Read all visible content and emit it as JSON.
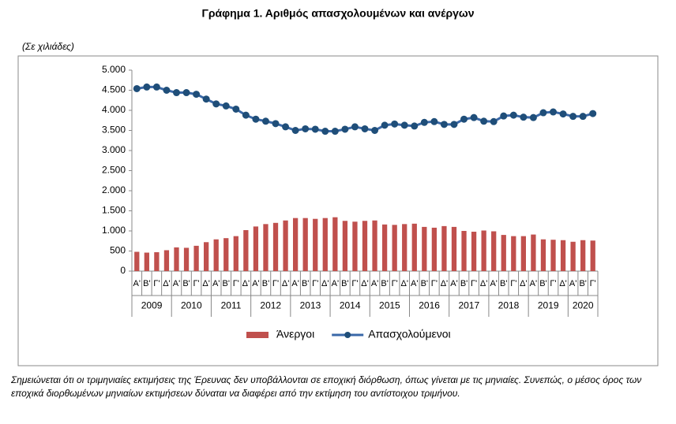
{
  "chart_data": {
    "type": "bar_line",
    "title": "Γράφημα 1. Αριθμός απασχολουμένων και ανέργων",
    "y_label": "(Σε χιλιάδες)",
    "note": "Σημειώνεται ότι οι τριμηνιαίες εκτιμήσεις της Έρευνας δεν υποβάλλονται σε εποχική διόρθωση, όπως γίνεται με τις μηνιαίες. Συνεπώς, ο μέσος όρος των εποχικά διορθωμένων μηνιαίων εκτιμήσεων δύναται να διαφέρει από την εκτίμηση του αντίστοιχου τριμήνου.",
    "categories": [
      "Α'",
      "Β'",
      "Γ'",
      "Δ'",
      "Α'",
      "Β'",
      "Γ'",
      "Δ'",
      "Α'",
      "Β'",
      "Γ'",
      "Δ'",
      "Α'",
      "Β'",
      "Γ'",
      "Δ'",
      "Α'",
      "Β'",
      "Γ'",
      "Δ'",
      "Α'",
      "Β'",
      "Γ'",
      "Δ'",
      "Α'",
      "Β'",
      "Γ'",
      "Δ'",
      "Α'",
      "Β'",
      "Γ'",
      "Δ'",
      "Α'",
      "Β'",
      "Γ'",
      "Δ'",
      "Α'",
      "Β'",
      "Γ'",
      "Δ'",
      "Α'",
      "Β'",
      "Γ'",
      "Δ'",
      "Α'",
      "Β'",
      "Γ'"
    ],
    "years": [
      "2009",
      "2010",
      "2011",
      "2012",
      "2013",
      "2014",
      "2015",
      "2016",
      "2017",
      "2018",
      "2019",
      "2020"
    ],
    "series": [
      {
        "name": "Άνεργοι",
        "type": "bar",
        "color": "#c0504d",
        "values": [
          480,
          460,
          470,
          520,
          590,
          580,
          630,
          720,
          790,
          820,
          870,
          1020,
          1110,
          1170,
          1200,
          1260,
          1320,
          1320,
          1300,
          1320,
          1340,
          1250,
          1230,
          1250,
          1260,
          1160,
          1150,
          1170,
          1180,
          1100,
          1080,
          1120,
          1100,
          1000,
          980,
          1010,
          990,
          900,
          870,
          870,
          910,
          790,
          780,
          770,
          730,
          770,
          760
        ]
      },
      {
        "name": "Απασχολούμενοι",
        "type": "line",
        "color": "#3a68a8",
        "values": [
          4540,
          4580,
          4580,
          4500,
          4440,
          4440,
          4400,
          4280,
          4160,
          4110,
          4030,
          3880,
          3780,
          3730,
          3670,
          3590,
          3500,
          3540,
          3530,
          3480,
          3480,
          3530,
          3590,
          3540,
          3500,
          3630,
          3660,
          3630,
          3610,
          3700,
          3720,
          3650,
          3650,
          3780,
          3820,
          3730,
          3720,
          3860,
          3880,
          3830,
          3820,
          3940,
          3960,
          3910,
          3850,
          3850,
          3920
        ]
      }
    ],
    "ylim": [
      0,
      5000
    ],
    "yticks": [
      0,
      {
        "value": 500,
        "label": "500"
      },
      {
        "value": 1000,
        "label": "1.000"
      },
      {
        "value": 1500,
        "label": "1.500"
      },
      {
        "value": 2000,
        "label": "2.000"
      },
      {
        "value": 2500,
        "label": "2.500"
      },
      {
        "value": 3000,
        "label": "3.000"
      },
      {
        "value": 3500,
        "label": "3.500"
      },
      {
        "value": 4000,
        "label": "4.000"
      },
      {
        "value": 4500,
        "label": "4.500"
      },
      {
        "value": 5000,
        "label": "5.000"
      }
    ],
    "legend": "bottom"
  }
}
